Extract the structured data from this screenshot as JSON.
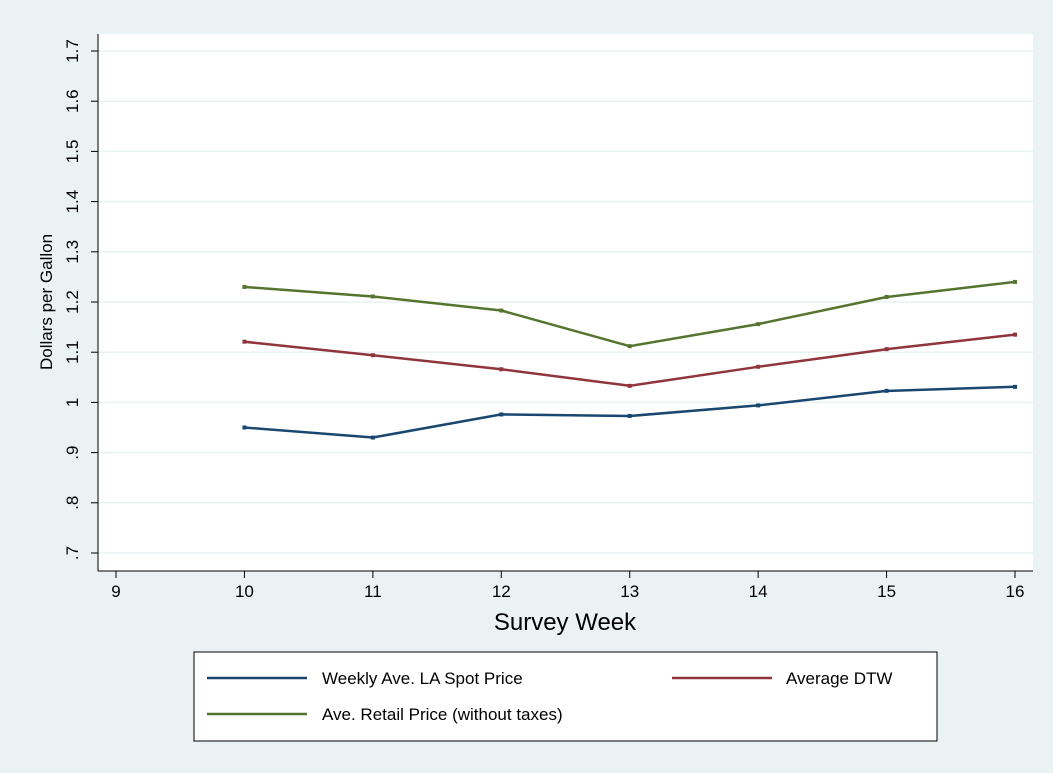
{
  "chart_data": {
    "type": "line",
    "xlabel": "Survey Week",
    "ylabel": "Dollars per Gallon",
    "xlim": [
      9,
      16
    ],
    "ylim": [
      0.7,
      1.7
    ],
    "x_ticks": [
      9,
      10,
      11,
      12,
      13,
      14,
      15,
      16
    ],
    "x_tick_labels": [
      "9",
      "10",
      "11",
      "12",
      "13",
      "14",
      "15",
      "16"
    ],
    "y_ticks": [
      0.7,
      0.8,
      0.9,
      1.0,
      1.1,
      1.2,
      1.3,
      1.4,
      1.5,
      1.6,
      1.7
    ],
    "y_tick_labels": [
      ".7",
      ".8",
      ".9",
      "1",
      "1.1",
      "1.2",
      "1.3",
      "1.4",
      "1.5",
      "1.6",
      "1.7"
    ],
    "grid": true,
    "legend_position": "bottom",
    "x": [
      10,
      11,
      12,
      13,
      14,
      15,
      16
    ],
    "series": [
      {
        "name": "Weekly Ave. LA Spot Price",
        "color": "#1a476f",
        "values": [
          0.95,
          0.93,
          0.976,
          0.973,
          0.994,
          1.023,
          1.031
        ]
      },
      {
        "name": "Average DTW",
        "color": "#90353b",
        "values": [
          1.121,
          1.094,
          1.066,
          1.033,
          1.071,
          1.106,
          1.135
        ]
      },
      {
        "name": "Ave. Retail Price (without taxes)",
        "color": "#55752f",
        "values": [
          1.23,
          1.211,
          1.183,
          1.112,
          1.156,
          1.21,
          1.24
        ]
      }
    ]
  }
}
